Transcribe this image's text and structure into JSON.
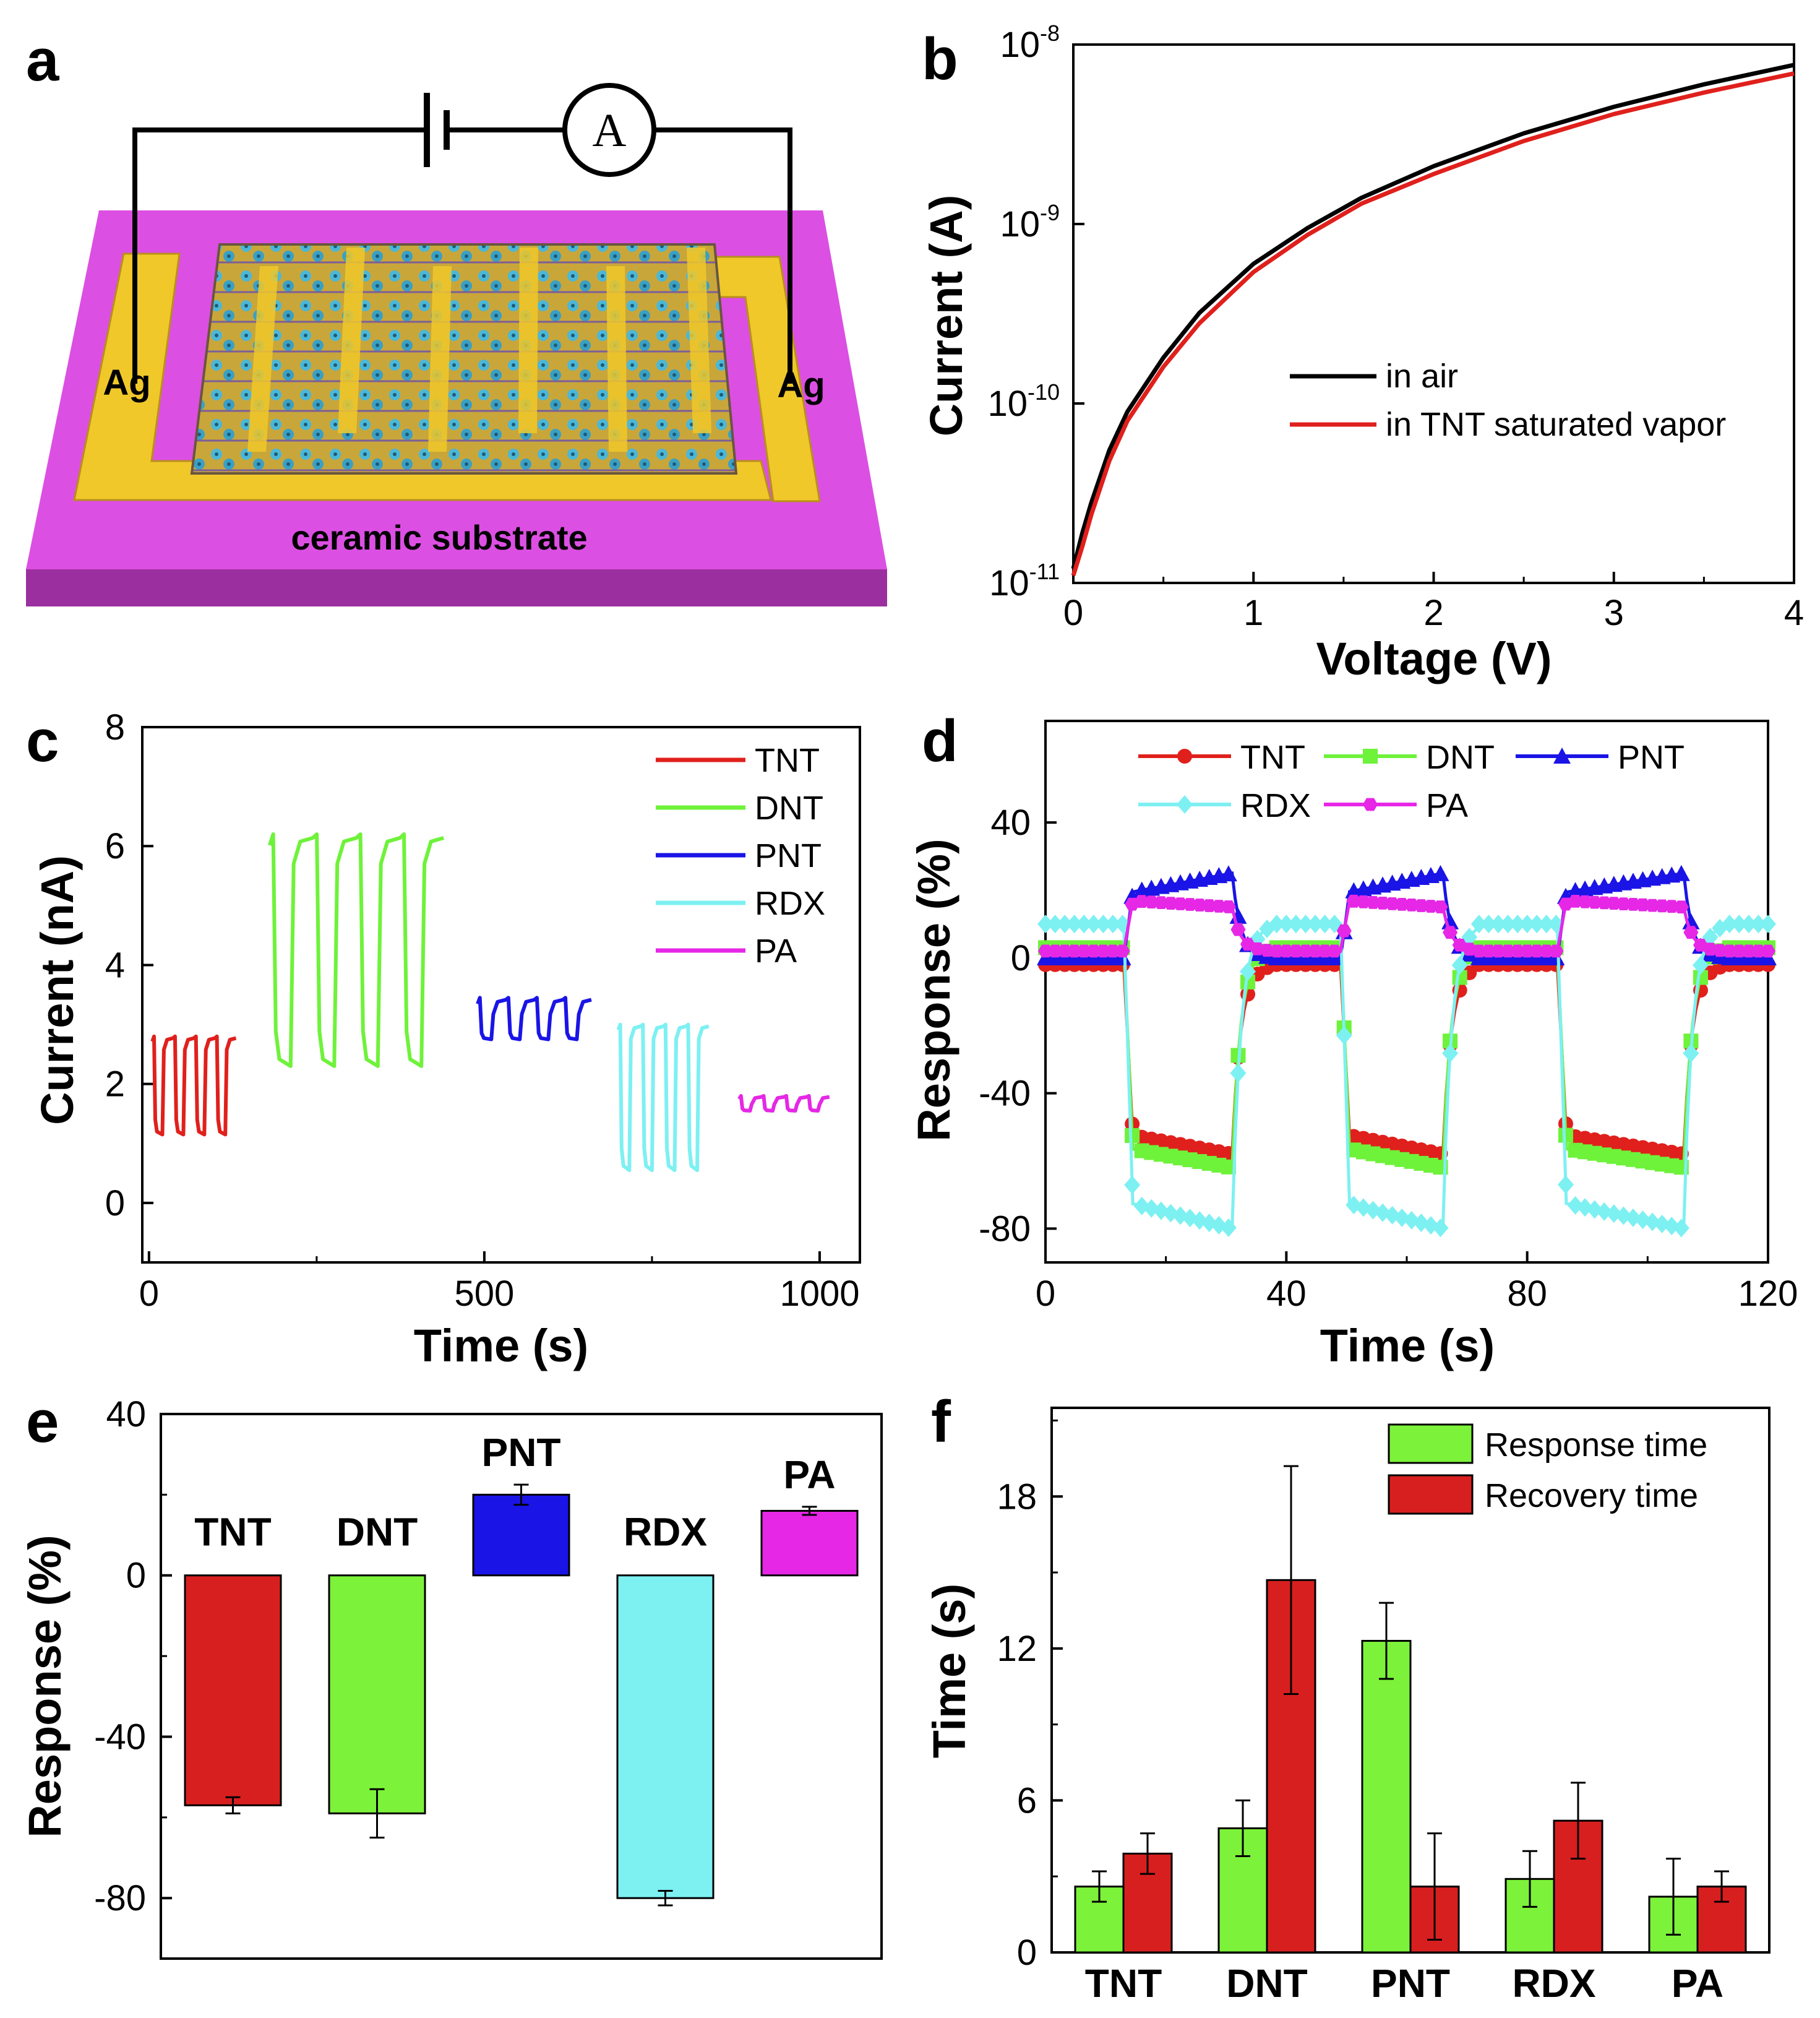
{
  "panel_labels": [
    "a",
    "b",
    "c",
    "d",
    "e",
    "f"
  ],
  "schematic": {
    "ammeter_symbol": "A",
    "electrode_left": "Ag",
    "electrode_right": "Ag",
    "substrate_label": "ceramic substrate",
    "colors": {
      "substrate": "#dc4fe3",
      "electrode": "#f0c82a",
      "wire": "#000000"
    }
  },
  "chart_data": [
    {
      "panel": "b",
      "type": "line",
      "xlabel": "Voltage (V)",
      "ylabel": "Current (A)",
      "yscale": "log",
      "xlim": [
        0,
        4
      ],
      "ylim": [
        1e-11,
        1e-08
      ],
      "xticks": [
        "0",
        "1",
        "2",
        "3",
        "4"
      ],
      "yticks": [
        {
          "base": "10",
          "exp": "-11"
        },
        {
          "base": "10",
          "exp": "-10"
        },
        {
          "base": "10",
          "exp": "-9"
        },
        {
          "base": "10",
          "exp": "-8"
        }
      ],
      "legend_position": "center-right",
      "series": [
        {
          "name": "in air",
          "color": "#000000",
          "x": [
            0,
            0.05,
            0.1,
            0.2,
            0.3,
            0.5,
            0.7,
            1.0,
            1.3,
            1.6,
            2.0,
            2.5,
            3.0,
            3.5,
            4.0
          ],
          "y": [
            1.2e-11,
            1.9e-11,
            2.8e-11,
            5.5e-11,
            9e-11,
            1.8e-10,
            3.2e-10,
            6e-10,
            9.5e-10,
            1.4e-09,
            2.1e-09,
            3.2e-09,
            4.5e-09,
            6e-09,
            7.7e-09
          ]
        },
        {
          "name": "in TNT saturated vapor",
          "color": "#e0201c",
          "x": [
            0,
            0.05,
            0.1,
            0.2,
            0.3,
            0.5,
            0.7,
            1.0,
            1.3,
            1.6,
            2.0,
            2.5,
            3.0,
            3.5,
            4.0
          ],
          "y": [
            1.1e-11,
            1.6e-11,
            2.4e-11,
            4.8e-11,
            8e-11,
            1.6e-10,
            2.8e-10,
            5.4e-10,
            8.7e-10,
            1.3e-09,
            1.9e-09,
            2.9e-09,
            4.1e-09,
            5.4e-09,
            6.9e-09
          ]
        }
      ]
    },
    {
      "panel": "c",
      "type": "line",
      "xlabel": "Time (s)",
      "ylabel": "Current (nA)",
      "xlim": [
        -10,
        1060
      ],
      "ylim": [
        -1,
        8
      ],
      "xticks": [
        "0",
        "500",
        "1000"
      ],
      "yticks": [
        "0",
        "2",
        "4",
        "6",
        "8"
      ],
      "legend_position": "top-right",
      "series": [
        {
          "name": "TNT",
          "color": "#e0201c",
          "x_start": 5,
          "x_end": 130,
          "high": 2.8,
          "low": 1.15,
          "cycles": 4
        },
        {
          "name": "DNT",
          "color": "#6ef23a",
          "x_start": 180,
          "x_end": 440,
          "high": 6.2,
          "low": 2.3,
          "cycles": 4
        },
        {
          "name": "PNT",
          "color": "#1a14e6",
          "x_start": 490,
          "x_end": 660,
          "high": 3.45,
          "low": 2.75,
          "cycles": 4
        },
        {
          "name": "RDX",
          "color": "#7df0f2",
          "x_start": 700,
          "x_end": 835,
          "high": 3.0,
          "low": 0.55,
          "cycles": 4
        },
        {
          "name": "PA",
          "color": "#e627e6",
          "x_start": 880,
          "x_end": 1015,
          "high": 1.8,
          "low": 1.55,
          "cycles": 4
        }
      ]
    },
    {
      "panel": "d",
      "type": "line",
      "xlabel": "Time (s)",
      "ylabel": "Response (%)",
      "xlim": [
        0,
        120
      ],
      "ylim": [
        -90,
        70
      ],
      "xticks": [
        "0",
        "40",
        "80",
        "120"
      ],
      "yticks": [
        "-80",
        "-40",
        "0",
        "40"
      ],
      "legend_position": "top",
      "on_intervals": [
        [
          13,
          31
        ],
        [
          49,
          66
        ],
        [
          85,
          106
        ]
      ],
      "series": [
        {
          "name": "TNT",
          "color": "#e0201c",
          "marker": "circle",
          "baseline": -2,
          "plateau_start": -52,
          "plateau_end": -58
        },
        {
          "name": "DNT",
          "color": "#6ef23a",
          "marker": "square",
          "baseline": 3,
          "plateau_start": -56,
          "plateau_end": -62
        },
        {
          "name": "PNT",
          "color": "#1a14e6",
          "marker": "triangle",
          "baseline": 0,
          "plateau_start": 19,
          "plateau_end": 25
        },
        {
          "name": "RDX",
          "color": "#7df0f2",
          "marker": "diamond",
          "baseline": 10,
          "plateau_start": -72,
          "plateau_end": -80
        },
        {
          "name": "PA",
          "color": "#e627e6",
          "marker": "hexagon",
          "baseline": 2,
          "plateau_start": 17,
          "plateau_end": 15
        }
      ]
    },
    {
      "panel": "e",
      "type": "bar",
      "xlabel": "",
      "ylabel": "Response (%)",
      "ylim": [
        -95,
        40
      ],
      "yticks": [
        "-80",
        "-40",
        "0",
        "40"
      ],
      "categories": [
        "TNT",
        "DNT",
        "PNT",
        "RDX",
        "PA"
      ],
      "values": [
        -57,
        -59,
        20,
        -80,
        16
      ],
      "errors": [
        2,
        6,
        2.5,
        1.8,
        1
      ],
      "colors": [
        "#d81f1f",
        "#7df23a",
        "#1a14e6",
        "#7df0f2",
        "#e627e6"
      ]
    },
    {
      "panel": "f",
      "type": "bar",
      "xlabel": "",
      "ylabel": "Time (s)",
      "ylim": [
        0,
        21.5
      ],
      "yticks": [
        "0",
        "6",
        "12",
        "18"
      ],
      "legend_position": "top-right",
      "categories": [
        "TNT",
        "DNT",
        "PNT",
        "RDX",
        "PA"
      ],
      "series": [
        {
          "name": "Response time",
          "color": "#7df23a",
          "values": [
            2.6,
            4.9,
            12.3,
            2.9,
            2.2
          ],
          "errors": [
            0.6,
            1.1,
            1.5,
            1.1,
            1.5
          ]
        },
        {
          "name": "Recovery time",
          "color": "#d81f1f",
          "values": [
            3.9,
            14.7,
            2.6,
            5.2,
            2.6
          ],
          "errors": [
            0.8,
            4.5,
            2.1,
            1.5,
            0.6
          ]
        }
      ]
    }
  ]
}
